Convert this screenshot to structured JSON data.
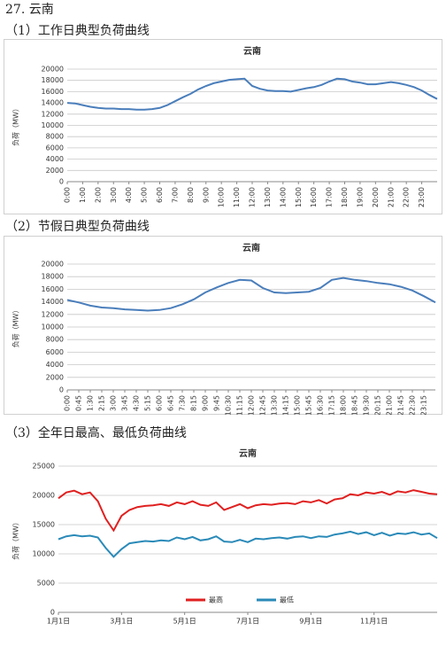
{
  "heading": "27. 云南",
  "sections": [
    "（1）工作日典型负荷曲线",
    "（2）节假日典型负荷曲线",
    "（3）全年日最高、最低负荷曲线"
  ],
  "chart_data": [
    {
      "type": "line",
      "title": "云南",
      "ylabel": "负荷（MW）",
      "categories": [
        "0:00",
        null,
        "1:00",
        null,
        "2:00",
        null,
        "3:00",
        null,
        "4:00",
        null,
        "5:00",
        null,
        "6:00",
        null,
        "7:00",
        null,
        "8:00",
        null,
        "9:00",
        null,
        "10:00",
        null,
        "11:00",
        null,
        "12:00",
        null,
        "13:00",
        null,
        "14:00",
        null,
        "15:00",
        null,
        "16:00",
        null,
        "17:00",
        null,
        "18:00",
        null,
        "19:00",
        null,
        "20:00",
        null,
        "21:00",
        null,
        "22:00",
        null,
        "23:00",
        null,
        null
      ],
      "values": [
        14000,
        13900,
        13600,
        13300,
        13100,
        13000,
        13000,
        12900,
        12900,
        12800,
        12800,
        12900,
        13100,
        13600,
        14300,
        15000,
        15600,
        16400,
        17000,
        17500,
        17800,
        18100,
        18200,
        18300,
        17000,
        16500,
        16200,
        16100,
        16100,
        16000,
        16300,
        16600,
        16800,
        17200,
        17800,
        18300,
        18200,
        17800,
        17600,
        17300,
        17300,
        17500,
        17700,
        17500,
        17200,
        16800,
        16200,
        15400,
        14700
      ],
      "color": "#4a7ebb",
      "ylim": [
        0,
        20000
      ],
      "yticks": [
        0,
        2000,
        4000,
        6000,
        8000,
        10000,
        12000,
        14000,
        16000,
        18000,
        20000
      ],
      "grid": true
    },
    {
      "type": "line",
      "title": "云南",
      "ylabel": "负荷（MW）",
      "categories": [
        "0:00",
        "0:45",
        "1:30",
        "2:15",
        "3:00",
        "3:45",
        "4:30",
        "5:15",
        "6:00",
        "6:45",
        "7:30",
        "8:15",
        "9:00",
        "9:45",
        "10:30",
        "11:15",
        "12:00",
        "12:45",
        "13:30",
        "14:15",
        "15:00",
        "15:45",
        "16:30",
        "17:15",
        "18:00",
        "18:45",
        "19:30",
        "20:15",
        "21:00",
        "21:45",
        "22:30",
        "23:15",
        null
      ],
      "values": [
        14300,
        13900,
        13400,
        13100,
        13000,
        12800,
        12700,
        12600,
        12700,
        13000,
        13600,
        14400,
        15500,
        16300,
        17000,
        17500,
        17400,
        16200,
        15500,
        15400,
        15500,
        15600,
        16200,
        17500,
        17800,
        17500,
        17300,
        17000,
        16800,
        16400,
        15800,
        14900,
        13900
      ],
      "color": "#4a7ebb",
      "ylim": [
        0,
        20000
      ],
      "yticks": [
        0,
        2000,
        4000,
        6000,
        8000,
        10000,
        12000,
        14000,
        16000,
        18000,
        20000
      ],
      "grid": true
    },
    {
      "type": "line",
      "title": "云南",
      "ylabel": "负荷（MW）",
      "categories": [
        "1月1日",
        null,
        null,
        null,
        null,
        null,
        null,
        null,
        "3月1日",
        null,
        null,
        null,
        null,
        null,
        null,
        null,
        "5月1日",
        null,
        null,
        null,
        null,
        null,
        null,
        null,
        "7月1日",
        null,
        null,
        null,
        null,
        null,
        null,
        null,
        "9月1日",
        null,
        null,
        null,
        null,
        null,
        null,
        null,
        "11月1日",
        null,
        null,
        null,
        null,
        null,
        null,
        null,
        null
      ],
      "series": [
        {
          "name": "最高",
          "color": "#e02020",
          "values": [
            19500,
            20500,
            20800,
            20200,
            20500,
            19000,
            16000,
            14000,
            16500,
            17500,
            18000,
            18200,
            18300,
            18500,
            18200,
            18800,
            18500,
            19000,
            18400,
            18200,
            18800,
            17500,
            18000,
            18500,
            17800,
            18300,
            18500,
            18400,
            18600,
            18700,
            18500,
            19000,
            18800,
            19200,
            18600,
            19300,
            19500,
            20200,
            20000,
            20500,
            20300,
            20600,
            20100,
            20700,
            20500,
            20900,
            20600,
            20300,
            20200
          ]
        },
        {
          "name": "最低",
          "color": "#2a8ab8",
          "values": [
            12500,
            13000,
            13200,
            13000,
            13100,
            12800,
            11000,
            9500,
            10800,
            11800,
            12000,
            12200,
            12100,
            12300,
            12200,
            12800,
            12500,
            12900,
            12300,
            12500,
            13000,
            12100,
            12000,
            12400,
            12000,
            12600,
            12500,
            12700,
            12800,
            12600,
            12900,
            13000,
            12700,
            13000,
            12900,
            13300,
            13500,
            13800,
            13400,
            13700,
            13200,
            13600,
            13100,
            13500,
            13400,
            13700,
            13300,
            13500,
            12700
          ]
        }
      ],
      "ylim": [
        0,
        25000
      ],
      "yticks": [
        0,
        5000,
        10000,
        15000,
        20000,
        25000
      ],
      "grid": true,
      "legend": "bottom"
    }
  ]
}
